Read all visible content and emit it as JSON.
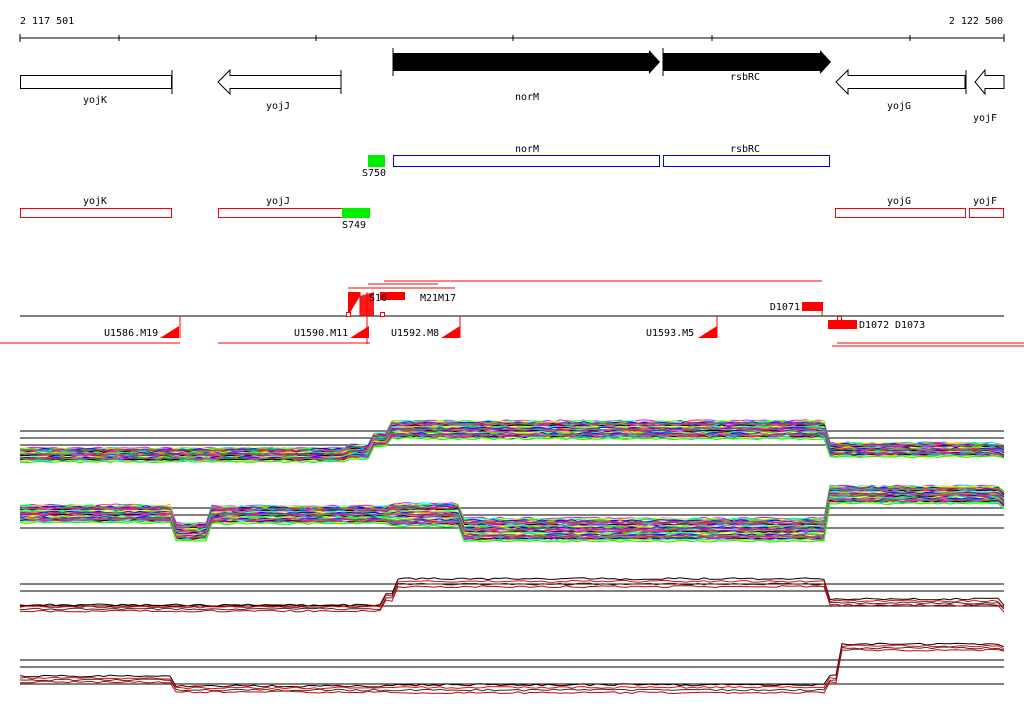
{
  "scale": {
    "start_label": "2 117 501",
    "end_label": "2 122 500"
  },
  "genes_top": [
    {
      "name": "yojK",
      "strand": "+"
    },
    {
      "name": "yojJ",
      "strand": "-"
    },
    {
      "name": "norM",
      "strand": "+"
    },
    {
      "name": "rsbRC",
      "strand": "+"
    },
    {
      "name": "yojG",
      "strand": "-"
    },
    {
      "name": "yojF",
      "strand": "-"
    }
  ],
  "operons": {
    "upstream": "S750",
    "genes": [
      "norM",
      "rsbRC"
    ]
  },
  "annot_row": {
    "genes": [
      "yojK",
      "yojJ",
      "yojG",
      "yojF"
    ],
    "site": "S749"
  },
  "features": {
    "upper_labels": [
      "S16",
      "M21M17"
    ],
    "right_upper": "D1071",
    "right_lower": [
      "D1072",
      "D1073"
    ],
    "lower_labels": [
      "U1586.M19",
      "U1590.M11",
      "U1592.M8",
      "U1593.M5"
    ]
  },
  "colors": {
    "red": "#ff0000",
    "green": "#00ee00",
    "blue": "#0000dd"
  }
}
